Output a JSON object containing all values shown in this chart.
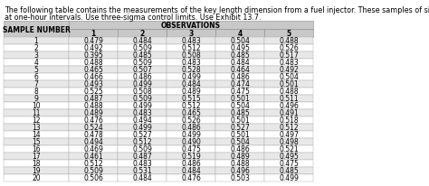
{
  "title_line1": "The following table contains the measurements of the key length dimension from a fuel injector. These samples of size five were taken",
  "title_line2": "at one-hour intervals. Use three-sigma control limits. Use Exhibit 13.7.",
  "obs_header": "OBSERVATIONS",
  "col_headers": [
    "SAMPLE NUMBER",
    "1",
    "2",
    "3",
    "4",
    "5"
  ],
  "rows": [
    [
      1,
      0.479,
      0.484,
      0.483,
      0.504,
      0.488
    ],
    [
      2,
      0.492,
      0.509,
      0.512,
      0.495,
      0.526
    ],
    [
      3,
      0.395,
      0.485,
      0.508,
      0.485,
      0.517
    ],
    [
      4,
      0.488,
      0.509,
      0.483,
      0.484,
      0.483
    ],
    [
      5,
      0.465,
      0.507,
      0.528,
      0.464,
      0.492
    ],
    [
      6,
      0.466,
      0.486,
      0.499,
      0.486,
      0.504
    ],
    [
      7,
      0.493,
      0.499,
      0.484,
      0.474,
      0.501
    ],
    [
      8,
      0.525,
      0.508,
      0.489,
      0.475,
      0.488
    ],
    [
      9,
      0.487,
      0.509,
      0.515,
      0.501,
      0.511
    ],
    [
      10,
      0.488,
      0.499,
      0.512,
      0.504,
      0.496
    ],
    [
      11,
      0.489,
      0.483,
      0.465,
      0.485,
      0.491
    ],
    [
      12,
      0.476,
      0.494,
      0.526,
      0.501,
      0.518
    ],
    [
      13,
      0.524,
      0.499,
      0.486,
      0.527,
      0.512
    ],
    [
      14,
      0.478,
      0.527,
      0.499,
      0.501,
      0.497
    ],
    [
      15,
      0.494,
      0.512,
      0.49,
      0.504,
      0.498
    ],
    [
      16,
      0.469,
      0.509,
      0.475,
      0.486,
      0.521
    ],
    [
      17,
      0.461,
      0.487,
      0.519,
      0.489,
      0.495
    ],
    [
      18,
      0.512,
      0.483,
      0.486,
      0.488,
      0.475
    ],
    [
      19,
      0.509,
      0.531,
      0.484,
      0.496,
      0.485
    ],
    [
      20,
      0.506,
      0.484,
      0.476,
      0.503,
      0.499
    ]
  ],
  "header_bg": "#c8c8c8",
  "odd_row_bg": "#e8e8e8",
  "even_row_bg": "#ffffff",
  "text_color": "#000000",
  "link_color": "#1a0dab",
  "title_font_size": 5.8,
  "font_size": 5.5,
  "header_font_size": 5.5
}
